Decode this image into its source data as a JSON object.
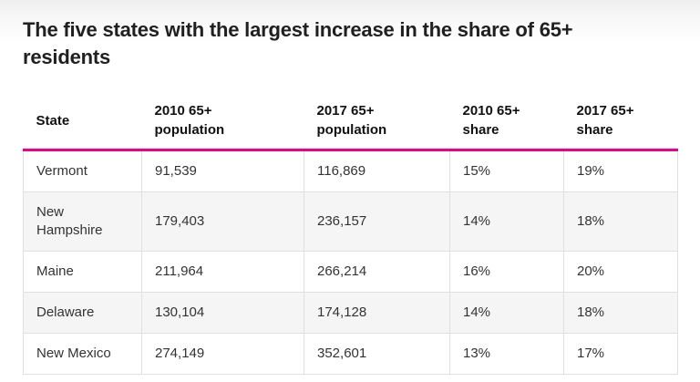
{
  "title": "The five states with the largest increase in the share of 65+\nresidents",
  "chart_data": {
    "type": "table",
    "title": "The five states with the largest increase in the share of 65+ residents",
    "columns": [
      "State",
      "2010 65+\npopulation",
      "2017 65+\npopulation",
      "2010 65+\nshare",
      "2017 65+\nshare"
    ],
    "rows": [
      [
        "Vermont",
        "91,539",
        "116,869",
        "15%",
        "19%"
      ],
      [
        "New Hampshire",
        "179,403",
        "236,157",
        "14%",
        "18%"
      ],
      [
        "Maine",
        "211,964",
        "266,214",
        "16%",
        "20%"
      ],
      [
        "Delaware",
        "130,104",
        "174,128",
        "14%",
        "18%"
      ],
      [
        "New Mexico",
        "274,149",
        "352,601",
        "13%",
        "17%"
      ]
    ],
    "layout": {
      "zebra_striping": true,
      "header_rule_color": "#ec008c",
      "legend": "none",
      "grid": "cell-borders"
    }
  },
  "colors": {
    "accent_rule": "#ec008c",
    "zebra_row": "#f5f5f5",
    "cell_border": "#e0e0e0",
    "title_text": "#202020",
    "cell_text": "#333333",
    "page_top_gradient": "#eeeeee"
  }
}
